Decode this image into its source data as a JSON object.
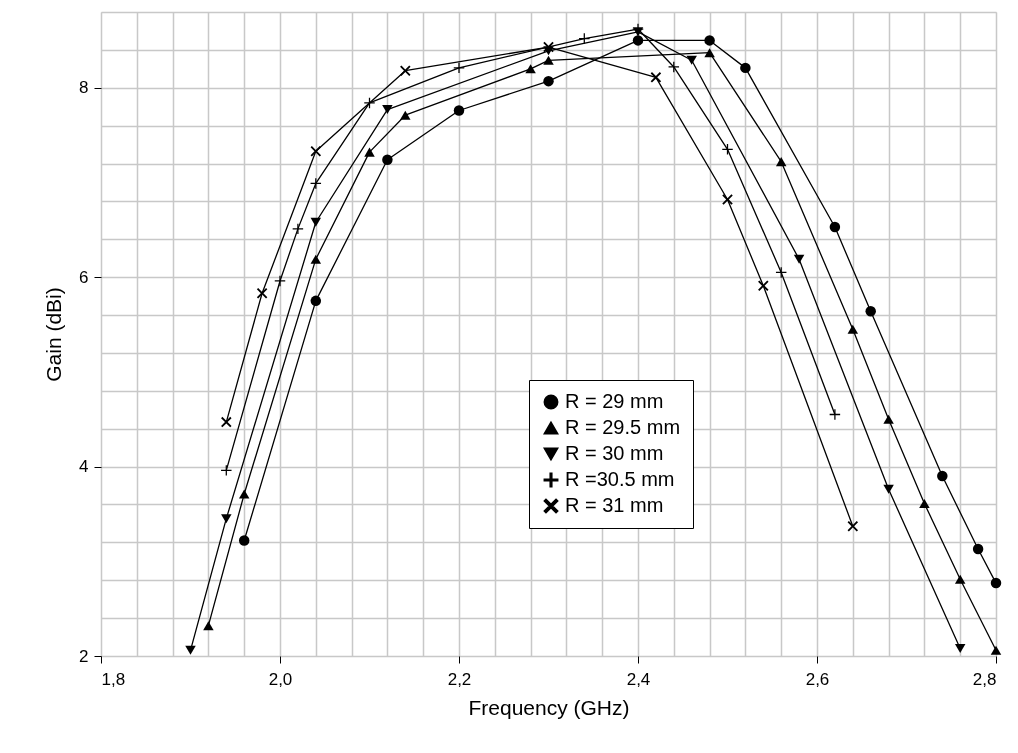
{
  "chart_data": {
    "type": "line",
    "xlabel": "Frequency (GHz)",
    "ylabel": "Gain (dBi)",
    "xlim": [
      1.8,
      2.8
    ],
    "ylim": [
      2,
      8.8
    ],
    "xticks": [
      {
        "value": 1.8,
        "label": "1,8"
      },
      {
        "value": 1.84,
        "label": null
      },
      {
        "value": 1.88,
        "label": null
      },
      {
        "value": 1.92,
        "label": null
      },
      {
        "value": 1.96,
        "label": null
      },
      {
        "value": 2.0,
        "label": "2,0"
      },
      {
        "value": 2.04,
        "label": null
      },
      {
        "value": 2.08,
        "label": null
      },
      {
        "value": 2.12,
        "label": null
      },
      {
        "value": 2.16,
        "label": null
      },
      {
        "value": 2.2,
        "label": "2,2"
      },
      {
        "value": 2.24,
        "label": null
      },
      {
        "value": 2.28,
        "label": null
      },
      {
        "value": 2.32,
        "label": null
      },
      {
        "value": 2.36,
        "label": null
      },
      {
        "value": 2.4,
        "label": "2,4"
      },
      {
        "value": 2.44,
        "label": null
      },
      {
        "value": 2.48,
        "label": null
      },
      {
        "value": 2.52,
        "label": null
      },
      {
        "value": 2.56,
        "label": null
      },
      {
        "value": 2.6,
        "label": "2,6"
      },
      {
        "value": 2.64,
        "label": null
      },
      {
        "value": 2.68,
        "label": null
      },
      {
        "value": 2.72,
        "label": null
      },
      {
        "value": 2.76,
        "label": null
      },
      {
        "value": 2.8,
        "label": "2,8"
      }
    ],
    "yticks": [
      2,
      {
        "value": 2.4,
        "label": null
      },
      {
        "value": 2.8,
        "label": null
      },
      {
        "value": 3.2,
        "label": null
      },
      {
        "value": 3.6,
        "label": null
      },
      4,
      {
        "value": 4.4,
        "label": null
      },
      {
        "value": 4.8,
        "label": null
      },
      {
        "value": 5.2,
        "label": null
      },
      {
        "value": 5.6,
        "label": null
      },
      6,
      {
        "value": 6.4,
        "label": null
      },
      {
        "value": 6.8,
        "label": null
      },
      {
        "value": 7.2,
        "label": null
      },
      {
        "value": 7.6,
        "label": null
      },
      8,
      {
        "value": 8.4,
        "label": null
      },
      {
        "value": 8.8,
        "label": null
      }
    ],
    "grid": true,
    "legend": "bottom right",
    "line_style": "solid",
    "series": [
      {
        "name": "R = 29 mm",
        "color": "#000000",
        "marker": "circle",
        "x": [
          1.96,
          2.04,
          2.12,
          2.2,
          2.3,
          2.4,
          2.48,
          2.52,
          2.62,
          2.66,
          2.74,
          2.78,
          2.8
        ],
        "values": [
          3.22,
          5.75,
          7.24,
          7.76,
          8.07,
          8.5,
          8.5,
          8.21,
          6.53,
          5.64,
          3.9,
          3.13,
          2.77
        ]
      },
      {
        "name": "R = 29.5 mm",
        "color": "#000000",
        "marker": "triangle",
        "x": [
          1.92,
          1.96,
          2.04,
          2.1,
          2.14,
          2.28,
          2.3,
          2.4,
          2.48,
          2.56,
          2.64,
          2.68,
          2.72,
          2.76,
          2.8
        ],
        "values": [
          2.32,
          3.71,
          6.19,
          7.32,
          7.71,
          8.2,
          8.29,
          null,
          8.37,
          7.22,
          5.45,
          4.5,
          3.61,
          2.81,
          2.06
        ]
      },
      {
        "name": "R = 30 mm",
        "color": "#000000",
        "marker": "triangle-down",
        "x": [
          1.9,
          1.94,
          2.04,
          2.12,
          2.3,
          2.4,
          2.46,
          2.58,
          2.68,
          2.76
        ],
        "values": [
          2.06,
          3.45,
          6.58,
          7.77,
          8.39,
          8.59,
          8.29,
          6.19,
          3.76,
          2.08
        ]
      },
      {
        "name": "R =30.5 mm",
        "color": "#000000",
        "marker": "cross",
        "x": [
          1.94,
          2.0,
          2.02,
          2.04,
          2.1,
          2.2,
          2.34,
          2.4,
          2.44,
          2.5,
          2.56,
          2.62
        ],
        "values": [
          3.96,
          5.96,
          6.51,
          6.99,
          7.84,
          8.21,
          8.52,
          8.62,
          8.22,
          7.35,
          6.05,
          4.55
        ]
      },
      {
        "name": "R = 31 mm",
        "color": "#000000",
        "marker": "x",
        "x": [
          1.94,
          1.98,
          2.04,
          2.14,
          2.3,
          2.42,
          2.5,
          2.54,
          2.64
        ],
        "values": [
          4.47,
          5.83,
          7.33,
          8.18,
          8.43,
          8.11,
          6.82,
          5.91,
          3.37
        ]
      }
    ]
  }
}
